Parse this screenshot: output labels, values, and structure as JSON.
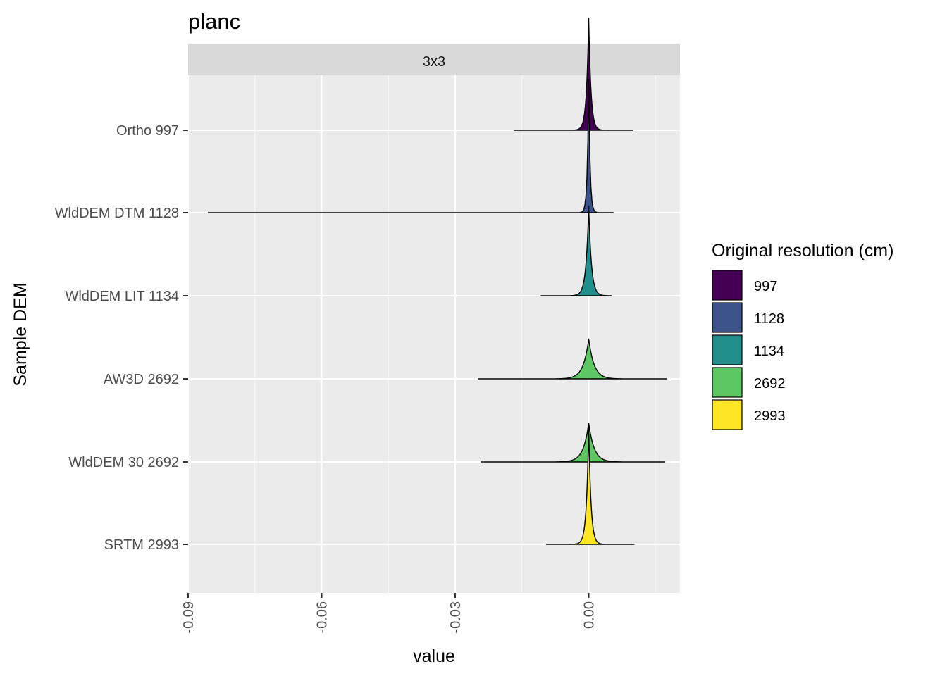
{
  "chart_data": {
    "type": "ridgeline",
    "title": "planc",
    "facet_label": "3x3",
    "xlabel": "value",
    "ylabel": "Sample DEM",
    "xlim": [
      -0.09,
      0.0205
    ],
    "x_ticks": [
      -0.09,
      -0.06,
      -0.03,
      0.0
    ],
    "x_tick_labels": [
      "-0.09",
      "-0.06",
      "-0.03",
      "0.00"
    ],
    "x_minor_ticks": [
      -0.075,
      -0.045,
      -0.015,
      0.015
    ],
    "legend": {
      "title": "Original resolution (cm)",
      "placement": "right",
      "entries": [
        {
          "label": "997",
          "color": "#440154"
        },
        {
          "label": "1128",
          "color": "#3B528B"
        },
        {
          "label": "1134",
          "color": "#21908C"
        },
        {
          "label": "2692",
          "color": "#5DC863"
        },
        {
          "label": "2993",
          "color": "#FDE725"
        }
      ]
    },
    "series": [
      {
        "name": "Ortho 997",
        "resolution": "997",
        "color": "#440154",
        "min": -0.0168,
        "max": 0.0098,
        "peak": 0.0,
        "spread": 0.0005,
        "height": 1.35
      },
      {
        "name": "WldDEM DTM 1128",
        "resolution": "1128",
        "color": "#3B528B",
        "min": -0.0855,
        "max": 0.0055,
        "peak": 0.0,
        "spread": 0.0003,
        "height": 1.62
      },
      {
        "name": "WldDEM LIT 1134",
        "resolution": "1134",
        "color": "#21908C",
        "min": -0.0107,
        "max": 0.0051,
        "peak": 0.0,
        "spread": 0.0006,
        "height": 1.08
      },
      {
        "name": "AW3D 2692",
        "resolution": "2692",
        "color": "#5DC863",
        "min": -0.0248,
        "max": 0.0175,
        "peak": 0.0,
        "spread": 0.0012,
        "height": 0.48
      },
      {
        "name": "WldDEM 30 2692",
        "resolution": "2692",
        "color": "#5DC863",
        "min": -0.0242,
        "max": 0.0171,
        "peak": 0.0,
        "spread": 0.0012,
        "height": 0.47
      },
      {
        "name": "SRTM 2993",
        "resolution": "2993",
        "color": "#FDE725",
        "min": -0.0095,
        "max": 0.0102,
        "peak": 0.0,
        "spread": 0.0005,
        "height": 1.43
      }
    ]
  }
}
